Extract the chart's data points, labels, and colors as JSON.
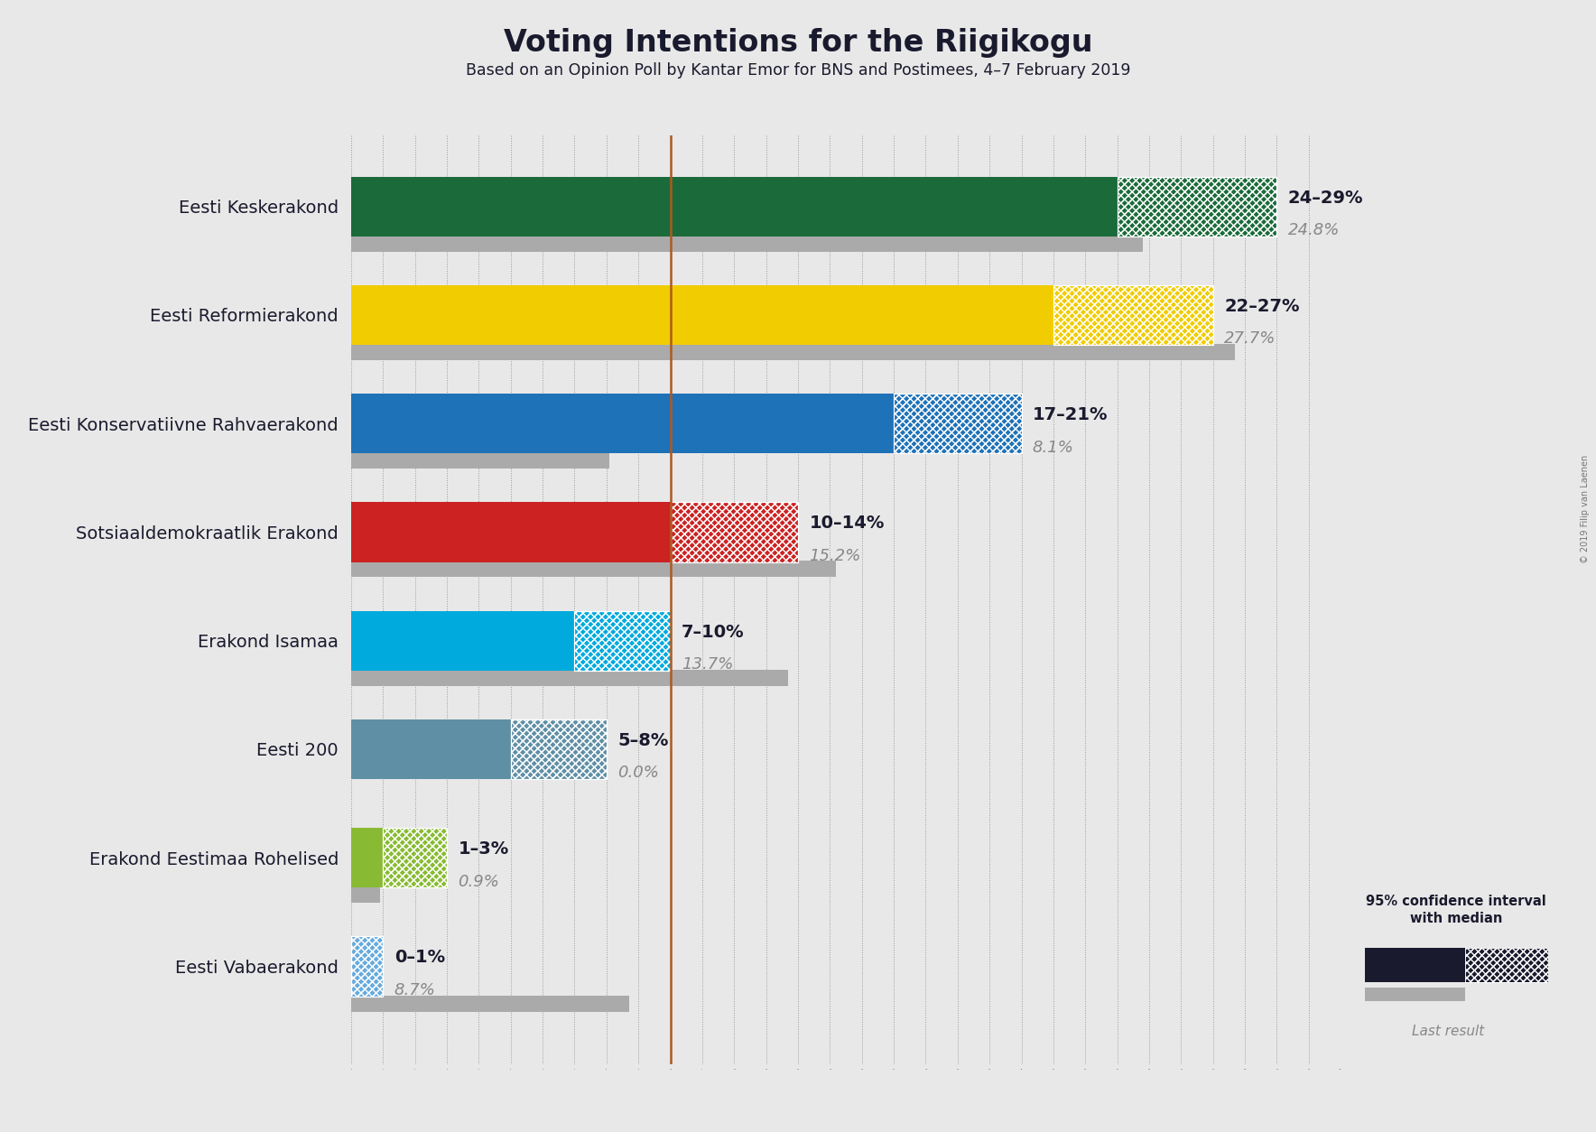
{
  "title": "Voting Intentions for the Riigikogu",
  "subtitle": "Based on an Opinion Poll by Kantar Emor for BNS and Postimees, 4–7 February 2019",
  "copyright": "© 2019 Filip van Laenen",
  "parties": [
    {
      "name": "Eesti Keskerakond",
      "low": 24,
      "high": 29,
      "median": 24,
      "last": 24.8,
      "color": "#1b6b3a"
    },
    {
      "name": "Eesti Reformierakond",
      "low": 22,
      "high": 27,
      "median": 27,
      "last": 27.7,
      "color": "#f0cc00"
    },
    {
      "name": "Eesti Konservatiivne Rahvaerakond",
      "low": 17,
      "high": 21,
      "median": 17,
      "last": 8.1,
      "color": "#1e72b8"
    },
    {
      "name": "Sotsiaaldemokraatlik Erakond",
      "low": 10,
      "high": 14,
      "median": 10,
      "last": 15.2,
      "color": "#cc2222"
    },
    {
      "name": "Erakond Isamaa",
      "low": 7,
      "high": 10,
      "median": 7,
      "last": 13.7,
      "color": "#00aadd"
    },
    {
      "name": "Eesti 200",
      "low": 5,
      "high": 8,
      "median": 5,
      "last": 0.0,
      "color": "#5f8fa5"
    },
    {
      "name": "Erakond Eestimaa Rohelised",
      "low": 1,
      "high": 3,
      "median": 1,
      "last": 0.9,
      "color": "#88bb33"
    },
    {
      "name": "Eesti Vabaerakond",
      "low": 0,
      "high": 1,
      "median": 0,
      "last": 8.7,
      "color": "#66aadd"
    }
  ],
  "label_text": [
    "24–29%",
    "22–27%",
    "17–21%",
    "10–14%",
    "7–10%",
    "5–8%",
    "1–3%",
    "0–1%"
  ],
  "vertical_line_x": 10,
  "xlim": [
    0,
    31
  ],
  "background_color": "#e8e8e8",
  "bar_height": 0.55,
  "last_bar_height": 0.15,
  "title_fontsize": 24,
  "subtitle_fontsize": 12.5,
  "label_fontsize": 14,
  "party_fontsize": 14,
  "vline_color": "#b05820",
  "last_bar_color": "#aaaaaa",
  "dark_navy": "#1a1a2e",
  "gray_text": "#888888"
}
